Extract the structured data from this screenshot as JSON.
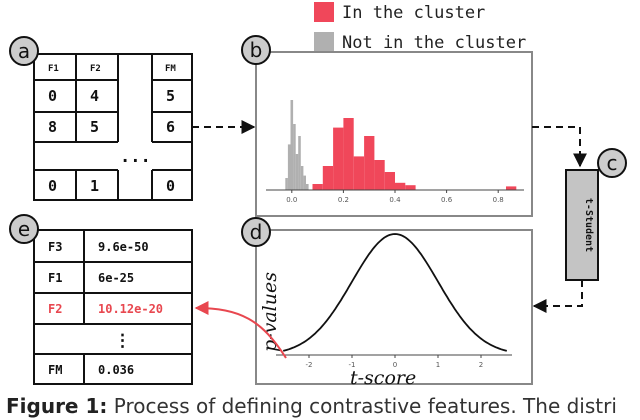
{
  "legend": {
    "in_cluster": "In the cluster",
    "not_in_cluster": "Not in the cluster",
    "in_color": "#f0475a",
    "not_color": "#b0b0b0"
  },
  "panels": {
    "a": "a",
    "b": "b",
    "c": "c",
    "d": "d",
    "e": "e"
  },
  "matrix": {
    "headers": [
      "F1",
      "F2",
      "FM"
    ],
    "rows": [
      [
        "0",
        "4",
        "5"
      ],
      [
        "8",
        "5",
        "6"
      ],
      [
        "0",
        "1",
        "0"
      ]
    ],
    "ellipsis": "..."
  },
  "t_student_label": "t-Student",
  "ranking": {
    "rows": [
      {
        "feature": "F3",
        "value": "9.6e-50"
      },
      {
        "feature": "F1",
        "value": "6e-25"
      },
      {
        "feature": "F2",
        "value": "10.12e-20"
      },
      {
        "feature": "FM",
        "value": "0.036"
      }
    ],
    "ellipsis": "⋮",
    "highlight_color": "#e8474f"
  },
  "chart_data": [
    {
      "type": "bar",
      "title": "",
      "xlabel": "",
      "ylabel": "",
      "xlim": [
        -0.1,
        0.9
      ],
      "x_ticks": [
        "0.0",
        "0.2",
        "0.4",
        "0.6",
        "0.8"
      ],
      "series": [
        {
          "name": "Not in the cluster",
          "color": "#b0b0b0",
          "bins": [
            {
              "x": -0.02,
              "h": 0.1
            },
            {
              "x": -0.01,
              "h": 0.38
            },
            {
              "x": 0.0,
              "h": 0.75
            },
            {
              "x": 0.01,
              "h": 0.55
            },
            {
              "x": 0.02,
              "h": 0.3
            },
            {
              "x": 0.03,
              "h": 0.45
            },
            {
              "x": 0.04,
              "h": 0.2
            },
            {
              "x": 0.05,
              "h": 0.12
            },
            {
              "x": 0.06,
              "h": 0.05
            }
          ]
        },
        {
          "name": "In the cluster",
          "color": "#f0475a",
          "bins": [
            {
              "x": 0.1,
              "h": 0.05
            },
            {
              "x": 0.14,
              "h": 0.2
            },
            {
              "x": 0.18,
              "h": 0.52
            },
            {
              "x": 0.22,
              "h": 0.6
            },
            {
              "x": 0.26,
              "h": 0.28
            },
            {
              "x": 0.3,
              "h": 0.45
            },
            {
              "x": 0.34,
              "h": 0.25
            },
            {
              "x": 0.38,
              "h": 0.15
            },
            {
              "x": 0.42,
              "h": 0.06
            },
            {
              "x": 0.46,
              "h": 0.04
            },
            {
              "x": 0.85,
              "h": 0.03
            }
          ]
        }
      ]
    },
    {
      "type": "line",
      "title": "",
      "xlabel": "t-score",
      "ylabel": "p-values",
      "x_ticks": [
        "-2",
        "-1",
        "0",
        "1",
        "2"
      ],
      "series": [
        {
          "name": "",
          "function": "normal_pdf",
          "mean": 0,
          "std": 1,
          "xrange": [
            -2.6,
            2.6
          ]
        }
      ]
    }
  ],
  "caption": {
    "label": "Figure 1:",
    "text": " Process of defining contrastive features. The distri"
  }
}
